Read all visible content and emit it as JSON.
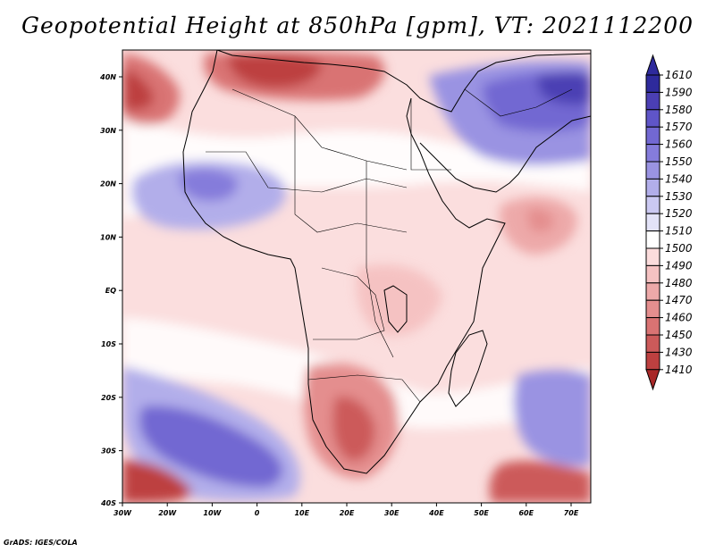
{
  "title": "Geopotential Height at 850hPa [gpm], VT: 2021112200",
  "credit": "GrADS: IGES/COLA",
  "lat_labels": [
    "40N",
    "30N",
    "20N",
    "10N",
    "EQ",
    "10S",
    "20S",
    "30S",
    "40S"
  ],
  "lon_labels": [
    "30W",
    "20W",
    "10W",
    "0",
    "10E",
    "20E",
    "30E",
    "40E",
    "50E",
    "60E",
    "70E"
  ],
  "colorbar": {
    "levels": [
      "1610",
      "1590",
      "1580",
      "1570",
      "1560",
      "1550",
      "1540",
      "1530",
      "1520",
      "1510",
      "1500",
      "1490",
      "1480",
      "1470",
      "1460",
      "1450",
      "1430",
      "1410"
    ],
    "colors": [
      "#2e2a9c",
      "#4b3fb4",
      "#5f55c8",
      "#7268d2",
      "#857cdb",
      "#9a93e2",
      "#b2aeea",
      "#cbc9f2",
      "#e3e3f8",
      "#ffffff",
      "#fbdcdc",
      "#f5c2c2",
      "#eda9a9",
      "#e48e8e",
      "#d97373",
      "#cc5a5a",
      "#bd4040",
      "#a82828"
    ]
  },
  "map": {
    "background": "#fbdede",
    "land_line": "#000000"
  }
}
